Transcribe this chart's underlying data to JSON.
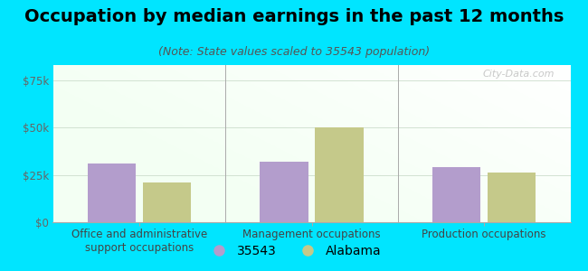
{
  "title": "Occupation by median earnings in the past 12 months",
  "subtitle": "(Note: State values scaled to 35543 population)",
  "categories": [
    "Office and administrative\nsupport occupations",
    "Management occupations",
    "Production occupations"
  ],
  "values_35543": [
    31000,
    32000,
    29000
  ],
  "values_alabama": [
    21000,
    50000,
    26000
  ],
  "bar_color_35543": "#b39dcc",
  "bar_color_alabama": "#c5c98a",
  "background_outer": "#00e5ff",
  "yticks": [
    0,
    25000,
    50000,
    75000
  ],
  "ytick_labels": [
    "$0",
    "$25k",
    "$50k",
    "$75k"
  ],
  "ylim": [
    0,
    83000
  ],
  "legend_label_35543": "35543",
  "legend_label_alabama": "Alabama",
  "watermark": "City-Data.com",
  "title_fontsize": 14,
  "subtitle_fontsize": 9,
  "axis_label_fontsize": 8.5,
  "legend_fontsize": 10,
  "bar_width": 0.28
}
